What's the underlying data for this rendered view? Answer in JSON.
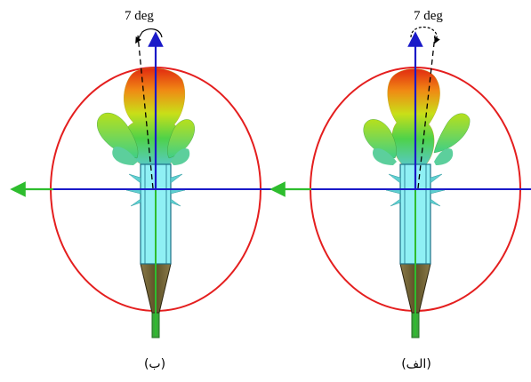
{
  "panels": [
    {
      "caption": "(ب)",
      "angle_label": "7 deg",
      "tilt_deg": 7
    },
    {
      "caption": "(الف)",
      "angle_label": "7 deg",
      "tilt_deg": 7
    }
  ],
  "colors": {
    "circle": "#e41e1e",
    "horizontal_axis": "#1a1ac8",
    "vertical_axis_arrow": "#1a1ac8",
    "horizontal_axis_arrow": "#2ebd2e",
    "vertical_line": "#2ebd2e",
    "feed_body": "#8ff0f4",
    "feed_outline": "#1b6f86",
    "cone": "#7a6a3a",
    "stem": "#3aa83a"
  }
}
